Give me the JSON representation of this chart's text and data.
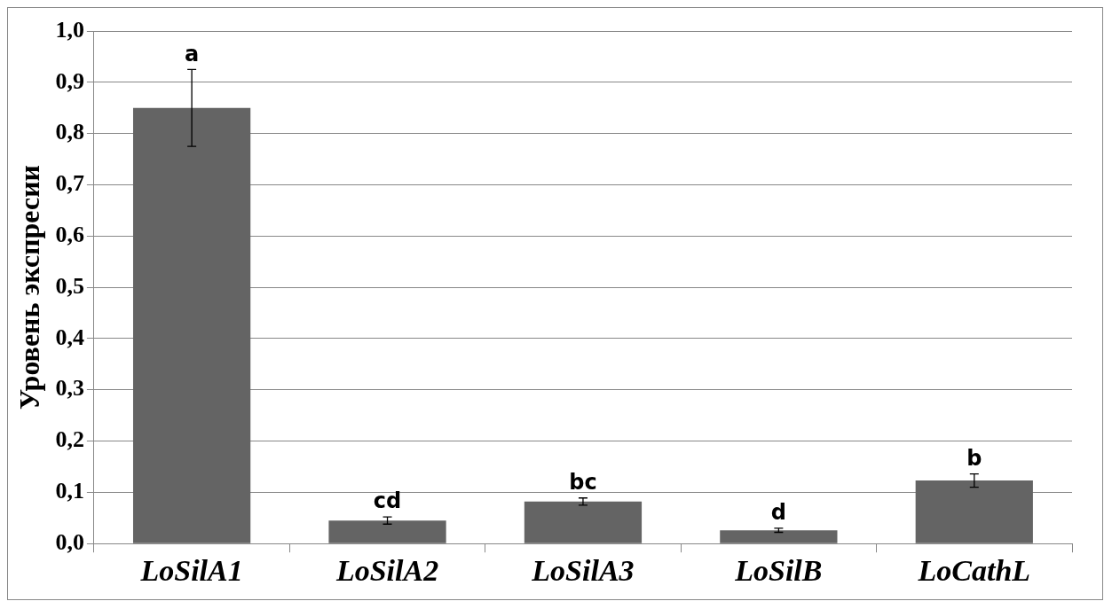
{
  "chart_data": {
    "type": "bar",
    "ylabel": "Уровень экспресии",
    "categories": [
      "LoSilA1",
      "LoSilA2",
      "LoSilA3",
      "LoSilB",
      "LoCathL"
    ],
    "values": [
      0.85,
      0.045,
      0.082,
      0.026,
      0.123
    ],
    "errors": [
      0.075,
      0.007,
      0.007,
      0.004,
      0.013
    ],
    "color": "#646464",
    "ylim": [
      0,
      1
    ],
    "yticks": [
      {
        "value": 0,
        "label": "0,0"
      },
      {
        "value": 0.1,
        "label": "0,1"
      },
      {
        "value": 0.2,
        "label": "0,2"
      },
      {
        "value": 0.3,
        "label": "0,3"
      },
      {
        "value": 0.4,
        "label": "0,4"
      },
      {
        "value": 0.5,
        "label": "0,5"
      },
      {
        "value": 0.6,
        "label": "0,6"
      },
      {
        "value": 0.7,
        "label": "0,7"
      },
      {
        "value": 0.8,
        "label": "0,8"
      },
      {
        "value": 0.9,
        "label": "0,9"
      },
      {
        "value": 1,
        "label": "1,0"
      }
    ],
    "grid": "y",
    "annotations": [
      {
        "text": "a",
        "x": "LoSilA1",
        "y": 0.925
      },
      {
        "text": "cd",
        "x": "LoSilA2",
        "y": 0.052
      },
      {
        "text": "bc",
        "x": "LoSilA3",
        "y": 0.089
      },
      {
        "text": "d",
        "x": "LoSilB",
        "y": 0.03
      },
      {
        "text": "b",
        "x": "LoCathL",
        "y": 0.136
      }
    ]
  }
}
